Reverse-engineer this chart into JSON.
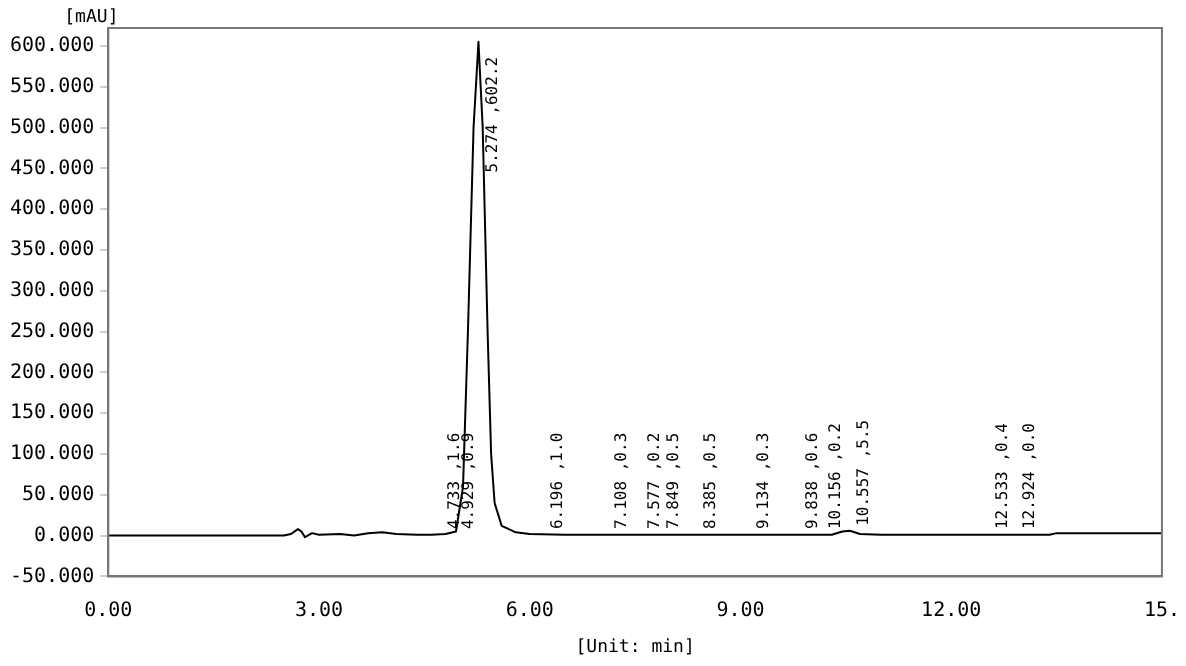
{
  "chart_data": {
    "type": "line",
    "xlabel": "[Unit: min]",
    "ylabel": "[mAU]",
    "xlim": [
      0,
      15
    ],
    "xticks": [
      {
        "value": 0,
        "label": "0.00"
      },
      {
        "value": 3,
        "label": "3.00"
      },
      {
        "value": 6,
        "label": "6.00"
      },
      {
        "value": 9,
        "label": "9.00"
      },
      {
        "value": 12,
        "label": "12.00"
      },
      {
        "value": 15,
        "label": "15."
      }
    ],
    "ylim": [
      -50,
      622
    ],
    "yticks": [
      {
        "value": -50,
        "label": "-50.000"
      },
      {
        "value": 0,
        "label": "0.000"
      },
      {
        "value": 50,
        "label": "50.000"
      },
      {
        "value": 100,
        "label": "100.000"
      },
      {
        "value": 150,
        "label": "150.000"
      },
      {
        "value": 200,
        "label": "200.000"
      },
      {
        "value": 250,
        "label": "250.000"
      },
      {
        "value": 300,
        "label": "300.000"
      },
      {
        "value": 350,
        "label": "350.000"
      },
      {
        "value": 400,
        "label": "400.000"
      },
      {
        "value": 450,
        "label": "450.000"
      },
      {
        "value": 500,
        "label": "500.000"
      },
      {
        "value": 550,
        "label": "550.000"
      },
      {
        "value": 600,
        "label": "600.000"
      }
    ],
    "grid": false,
    "legend": false,
    "marker": "none",
    "line_style": "solid",
    "series": [
      {
        "color": "#000000",
        "x": [
          0,
          2.5,
          2.6,
          2.7,
          2.75,
          2.8,
          2.9,
          3.0,
          3.3,
          3.5,
          3.7,
          3.9,
          4.1,
          4.4,
          4.6,
          4.8,
          4.95,
          5.05,
          5.12,
          5.2,
          5.27,
          5.33,
          5.4,
          5.45,
          5.5,
          5.6,
          5.8,
          6.0,
          6.5,
          10.3,
          10.45,
          10.557,
          10.7,
          11,
          13.4,
          13.5,
          15
        ],
        "values": [
          0,
          0,
          2,
          8,
          5,
          -2,
          3,
          1,
          2,
          0,
          3,
          4,
          2,
          1,
          1,
          2,
          5,
          60,
          250,
          500,
          605,
          500,
          250,
          100,
          40,
          12,
          4,
          2,
          1,
          1,
          5,
          6,
          2,
          1,
          1,
          3,
          3
        ]
      }
    ],
    "annotations": [
      {
        "text": "4.733 ,1.6",
        "x": 4.733,
        "y": 8
      },
      {
        "text": "4.929 ,0.9",
        "x": 4.929,
        "y": 8
      },
      {
        "text": "5.274 ,602.2",
        "x": 5.274,
        "y": 445
      },
      {
        "text": "6.196 ,1.0",
        "x": 6.196,
        "y": 8
      },
      {
        "text": "7.108 ,0.3",
        "x": 7.108,
        "y": 8
      },
      {
        "text": "7.577 ,0.2",
        "x": 7.577,
        "y": 8
      },
      {
        "text": "7.849 ,0.5",
        "x": 7.849,
        "y": 8
      },
      {
        "text": "8.385 ,0.5",
        "x": 8.385,
        "y": 8
      },
      {
        "text": "9.134 ,0.3",
        "x": 9.134,
        "y": 8
      },
      {
        "text": "9.838 ,0.6",
        "x": 9.838,
        "y": 8
      },
      {
        "text": "10.156 ,0.2",
        "x": 10.156,
        "y": 8
      },
      {
        "text": "10.557 ,5.5",
        "x": 10.557,
        "y": 12
      },
      {
        "text": "12.533 ,0.4",
        "x": 12.533,
        "y": 8
      },
      {
        "text": "12.924 ,0.0",
        "x": 12.924,
        "y": 8
      }
    ]
  }
}
